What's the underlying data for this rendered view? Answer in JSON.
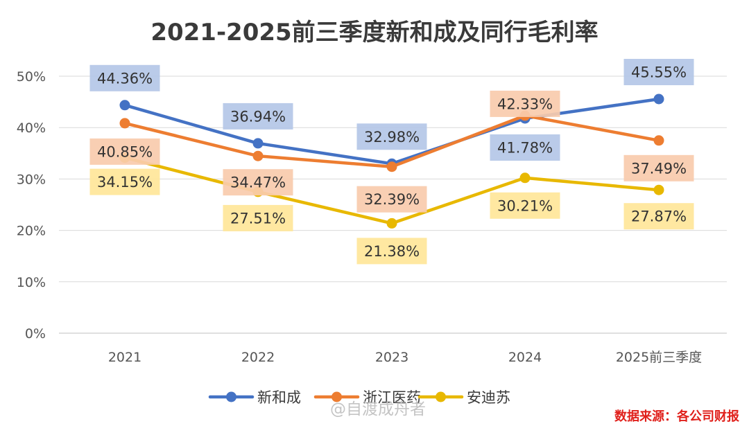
{
  "chart_data": {
    "type": "line",
    "title": "2021-2025前三季度新和成及同行毛利率",
    "categories": [
      "2021",
      "2022",
      "2023",
      "2024",
      "2025前三季度"
    ],
    "y_ticks": [
      "0%",
      "10%",
      "20%",
      "30%",
      "40%",
      "50%"
    ],
    "ylim": [
      0,
      50
    ],
    "grid": true,
    "legend_position": "bottom",
    "series": [
      {
        "name": "新和成",
        "color": "#4472c4",
        "label_bg": "#b4c7e7",
        "values": [
          44.36,
          36.94,
          32.98,
          41.78,
          45.55
        ],
        "labels": [
          "44.36%",
          "36.94%",
          "32.98%",
          "41.78%",
          "45.55%"
        ]
      },
      {
        "name": "浙江医药",
        "color": "#ed7d31",
        "label_bg": "#f8cbad",
        "values": [
          40.85,
          34.47,
          32.39,
          42.33,
          37.49
        ],
        "labels": [
          "40.85%",
          "34.47%",
          "32.39%",
          "42.33%",
          "37.49%"
        ]
      },
      {
        "name": "安迪苏",
        "color": "#e8b800",
        "label_bg": "#ffe699",
        "values": [
          34.15,
          27.51,
          21.38,
          30.21,
          27.87
        ],
        "labels": [
          "34.15%",
          "27.51%",
          "21.38%",
          "30.21%",
          "27.87%"
        ]
      }
    ]
  },
  "source_note": "数据来源：各公司财报",
  "watermark": "@自渡成舟者"
}
